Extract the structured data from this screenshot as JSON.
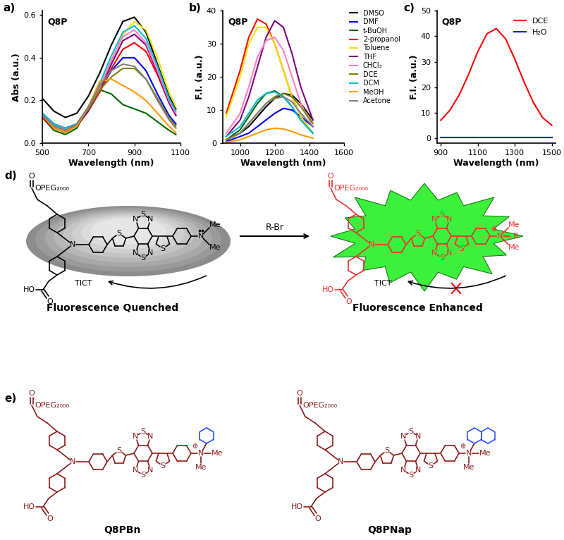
{
  "chart_data": [
    {
      "type": "line",
      "panel_label": "a)",
      "annotation": "Q8P",
      "xlabel": "Wavelength (nm)",
      "ylabel": "Abs (a.u.)",
      "x": [
        500,
        550,
        600,
        650,
        700,
        750,
        800,
        850,
        900,
        950,
        1000,
        1050,
        1080
      ],
      "series": [
        {
          "color": "#000000",
          "values": [
            0.21,
            0.15,
            0.12,
            0.14,
            0.22,
            0.33,
            0.46,
            0.57,
            0.59,
            0.52,
            0.37,
            0.22,
            0.16
          ]
        },
        {
          "color": "#0000ff",
          "values": [
            0.14,
            0.09,
            0.07,
            0.09,
            0.16,
            0.25,
            0.34,
            0.4,
            0.4,
            0.34,
            0.23,
            0.13,
            0.09
          ]
        },
        {
          "color": "#006400",
          "values": [
            0.12,
            0.06,
            0.04,
            0.07,
            0.17,
            0.25,
            0.23,
            0.18,
            0.16,
            0.14,
            0.1,
            0.06,
            0.04
          ]
        },
        {
          "color": "#ff0000",
          "values": [
            0.12,
            0.07,
            0.05,
            0.08,
            0.15,
            0.24,
            0.35,
            0.44,
            0.47,
            0.43,
            0.32,
            0.19,
            0.13
          ]
        },
        {
          "color": "#f5e500",
          "values": [
            0.13,
            0.08,
            0.06,
            0.08,
            0.15,
            0.25,
            0.38,
            0.51,
            0.57,
            0.53,
            0.4,
            0.24,
            0.17
          ]
        },
        {
          "color": "#800080",
          "values": [
            0.13,
            0.08,
            0.06,
            0.08,
            0.15,
            0.25,
            0.37,
            0.48,
            0.51,
            0.46,
            0.33,
            0.19,
            0.13
          ]
        },
        {
          "color": "#ff7fbf",
          "values": [
            0.14,
            0.09,
            0.07,
            0.09,
            0.16,
            0.26,
            0.39,
            0.5,
            0.53,
            0.47,
            0.34,
            0.2,
            0.14
          ]
        },
        {
          "color": "#808000",
          "values": [
            0.13,
            0.08,
            0.06,
            0.08,
            0.16,
            0.25,
            0.31,
            0.35,
            0.35,
            0.3,
            0.21,
            0.12,
            0.08
          ]
        },
        {
          "color": "#00bcd4",
          "values": [
            0.14,
            0.09,
            0.07,
            0.09,
            0.17,
            0.28,
            0.41,
            0.52,
            0.55,
            0.49,
            0.36,
            0.21,
            0.15
          ]
        },
        {
          "color": "#ff9900",
          "values": [
            0.13,
            0.07,
            0.05,
            0.08,
            0.17,
            0.29,
            0.3,
            0.27,
            0.24,
            0.2,
            0.14,
            0.08,
            0.05
          ]
        },
        {
          "color": "#808080",
          "values": [
            0.13,
            0.08,
            0.06,
            0.09,
            0.17,
            0.27,
            0.34,
            0.37,
            0.36,
            0.3,
            0.2,
            0.11,
            0.07
          ]
        }
      ],
      "xlim": [
        500,
        1100
      ],
      "xticks": [
        500,
        700,
        900,
        1100
      ],
      "ylim": [
        0,
        0.62
      ],
      "yticks": [
        {
          "value": 0,
          "label": "0.0"
        },
        0.2,
        0.4,
        0.6
      ]
    },
    {
      "type": "line",
      "panel_label": "b)",
      "annotation": "Q8P",
      "xlabel": "Wavelength (nm)",
      "ylabel": "F.I. (a.u.)",
      "x": [
        920,
        1000,
        1050,
        1100,
        1150,
        1200,
        1250,
        1300,
        1350,
        1420
      ],
      "series": [
        {
          "name": "DMSO",
          "color": "#000000",
          "values": [
            1,
            3,
            5,
            8,
            11,
            13.5,
            15,
            14.5,
            12,
            7
          ]
        },
        {
          "name": "DMF",
          "color": "#0000ff",
          "values": [
            0.5,
            2,
            3,
            5,
            7,
            9,
            10.5,
            10,
            8,
            5
          ]
        },
        {
          "name": "t-BuOH",
          "color": "#006400",
          "values": [
            1,
            4,
            8,
            12,
            15,
            15.8,
            14,
            11,
            7,
            3
          ]
        },
        {
          "name": "2-propanol",
          "color": "#ff0000",
          "values": [
            9,
            22,
            32,
            37.5,
            36,
            30,
            22,
            14,
            8,
            3
          ]
        },
        {
          "name": "Toluene",
          "color": "#f5e500",
          "values": [
            8,
            20,
            30,
            35,
            35,
            30,
            22,
            14,
            8,
            3
          ]
        },
        {
          "name": "THF",
          "color": "#800080",
          "values": [
            2,
            7,
            14,
            23,
            32,
            37,
            35,
            27,
            17,
            7
          ]
        },
        {
          "name": "CHCl₃",
          "color": "#ff7fbf",
          "values": [
            3,
            9,
            17,
            26,
            31,
            32,
            28,
            20,
            12,
            5
          ]
        },
        {
          "name": "DCE",
          "color": "#808000",
          "values": [
            1,
            3,
            6,
            9,
            12,
            14,
            15,
            14,
            11,
            6
          ]
        },
        {
          "name": "DCM",
          "color": "#00bcd4",
          "values": [
            2,
            5,
            9,
            13,
            15,
            15.5,
            14,
            11,
            7,
            3
          ]
        },
        {
          "name": "MeOH",
          "color": "#ff9900",
          "values": [
            0.3,
            1,
            2,
            3,
            4,
            4.5,
            4.3,
            3.5,
            2.5,
            1.5
          ]
        },
        {
          "name": "Acetone",
          "color": "#808080",
          "values": [
            1,
            3,
            6,
            9,
            12,
            13.5,
            14,
            12.5,
            9,
            5
          ]
        }
      ],
      "legend": "right",
      "xlim": [
        900,
        1600
      ],
      "xticks": [
        1000,
        1200,
        1400,
        1600
      ],
      "ylim": [
        0,
        40
      ],
      "yticks": [
        0,
        10,
        20,
        30,
        40
      ]
    },
    {
      "type": "line",
      "panel_label": "c)",
      "annotation": "Q8P",
      "xlabel": "Wavelength (nm)",
      "ylabel": "F.I. (a.u.)",
      "x": [
        900,
        950,
        1000,
        1050,
        1100,
        1150,
        1200,
        1250,
        1300,
        1350,
        1400,
        1450,
        1500
      ],
      "series": [
        {
          "name": "DCE",
          "color": "#ff0000",
          "values": [
            7,
            11,
            17,
            25,
            34,
            41,
            43,
            39,
            31,
            22,
            14,
            8,
            5
          ]
        },
        {
          "name": "H₂O",
          "color": "#0000ff",
          "values": [
            0.3,
            0.3,
            0.3,
            0.3,
            0.3,
            0.3,
            0.3,
            0.3,
            0.3,
            0.3,
            0.3,
            0.3,
            0.3
          ]
        }
      ],
      "legend": "upper right",
      "xlim": [
        880,
        1520
      ],
      "xticks": [
        900,
        1100,
        1300,
        1500
      ],
      "ylim": [
        -2,
        50
      ],
      "yticks": [
        0,
        10,
        20,
        30,
        40,
        50
      ]
    }
  ],
  "diagram": {
    "atoms": {
      "N": "N",
      "S": "S",
      "O": "O",
      "HO": "HO",
      "Me": "Me",
      "cation": "⊕",
      "ester": "OPEG₂₀₀₀"
    },
    "d": {
      "panel_label": "d)",
      "reactant_caption": "Fluorescence Quenched",
      "product_caption": "Fluorescence Enhanced",
      "reagent": "R-Br",
      "process": "TICT",
      "substituent": "R"
    },
    "e": {
      "panel_label": "e)",
      "compounds": [
        "Q8PBn",
        "Q8PNap"
      ]
    }
  }
}
